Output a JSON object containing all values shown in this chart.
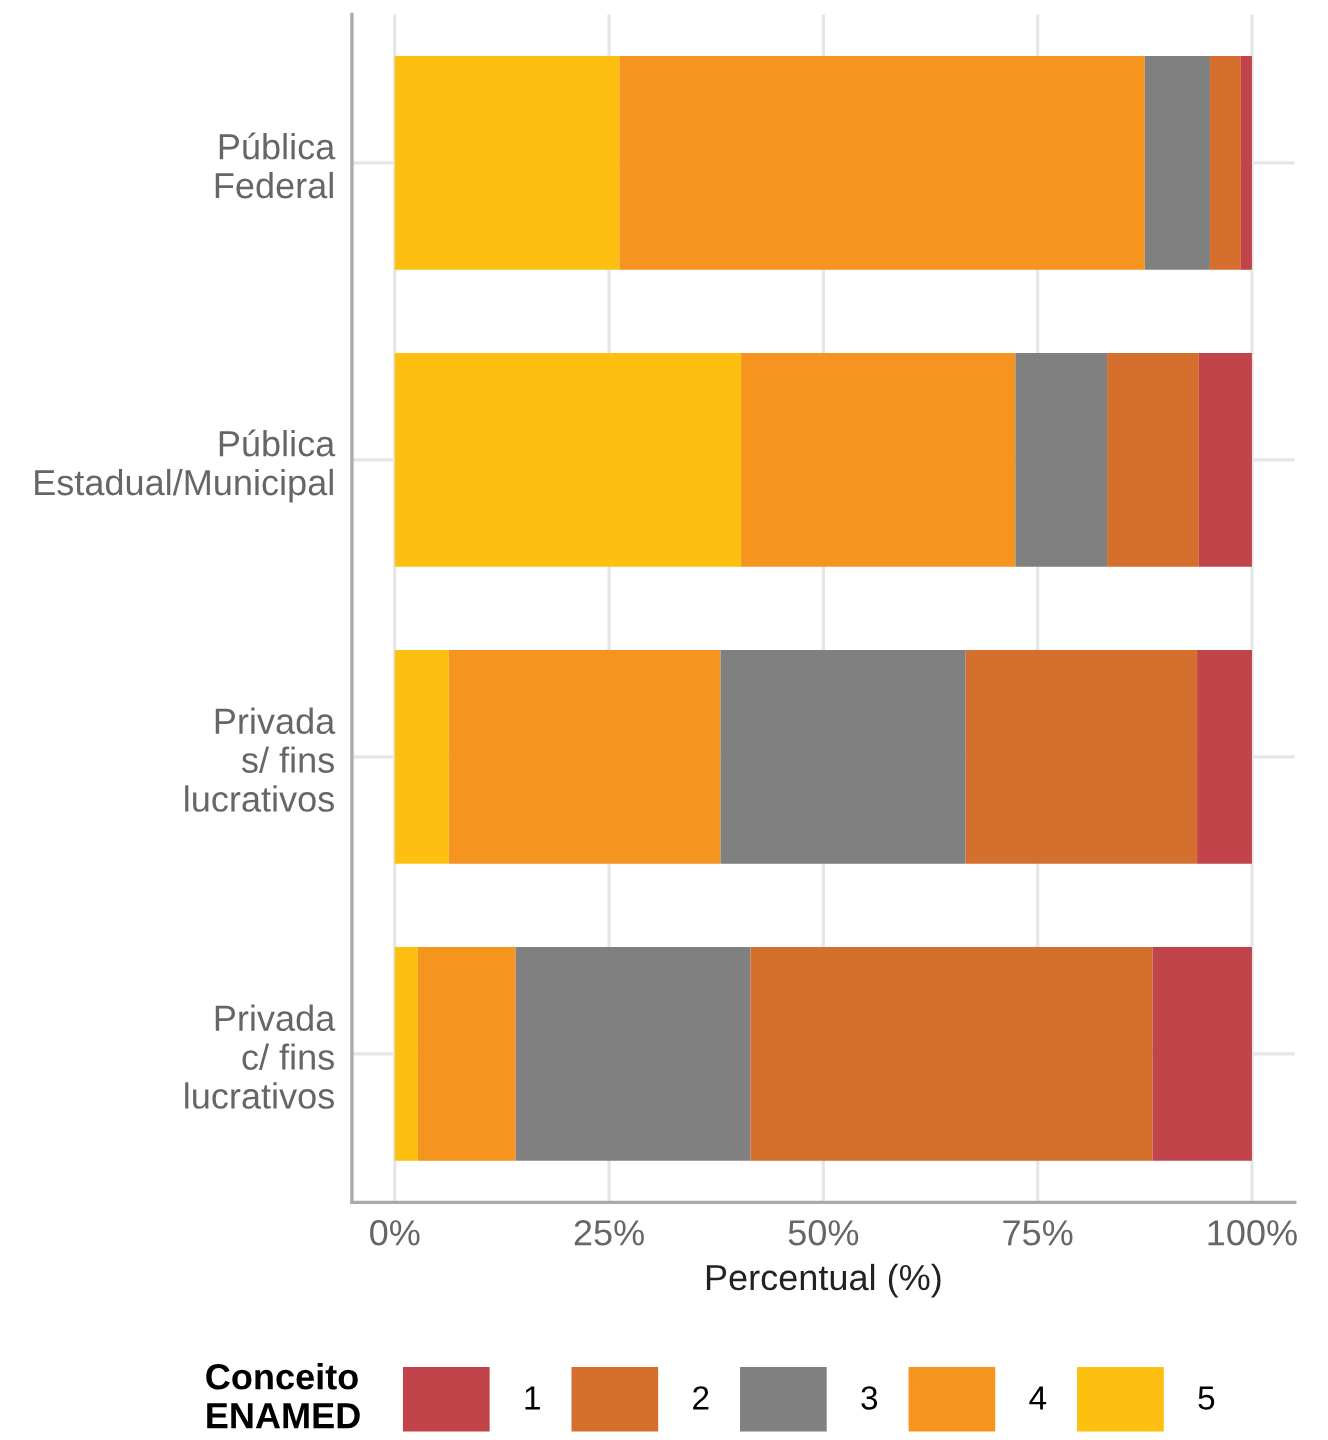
{
  "chart_data": {
    "type": "bar",
    "orientation": "horizontal",
    "stacked": true,
    "categories": [
      "Pública\nFederal",
      "Pública\nEstadual/Municipal",
      "Privada\ns/ fins\nlucrativos",
      "Privada\nc/ fins\nlucrativos"
    ],
    "series": [
      {
        "name": "5",
        "color": "#fdc010",
        "values": [
          26.2,
          40.4,
          6.3,
          2.7
        ]
      },
      {
        "name": "4",
        "color": "#f5951f",
        "values": [
          61.3,
          32.0,
          31.7,
          11.4
        ]
      },
      {
        "name": "3",
        "color": "#808080",
        "values": [
          7.6,
          10.7,
          28.6,
          27.4
        ]
      },
      {
        "name": "2",
        "color": "#d56f2e",
        "values": [
          3.6,
          10.7,
          27.0,
          46.9
        ]
      },
      {
        "name": "1",
        "color": "#c0444a",
        "values": [
          1.3,
          6.2,
          6.4,
          11.6
        ]
      }
    ],
    "xlabel": "Percentual (%)",
    "legend_title": "Conceito\nENAMED",
    "xlim": [
      -5,
      105
    ],
    "xticks": [
      {
        "value": 0,
        "label": "0%"
      },
      {
        "value": 25,
        "label": "25%"
      },
      {
        "value": 50,
        "label": "50%"
      },
      {
        "value": 75,
        "label": "75%"
      },
      {
        "value": 100,
        "label": "100%"
      }
    ],
    "grid": true,
    "legend": "bottom"
  }
}
